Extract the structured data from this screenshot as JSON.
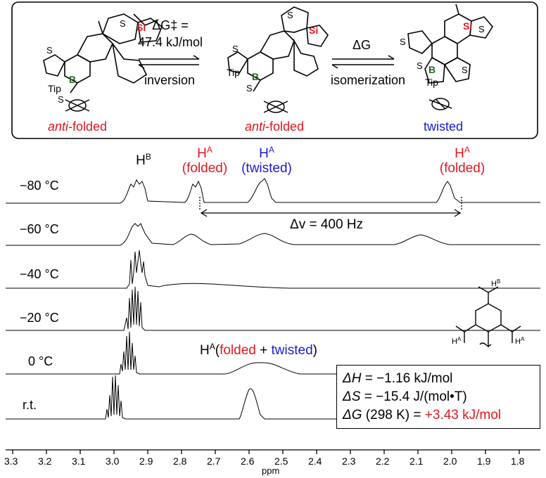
{
  "scheme": {
    "step1_top": "ΔG‡ =",
    "step1_value": "47.4 kJ/mol",
    "step1_bottom": "inversion",
    "step2_top": "ΔG",
    "step2_bottom": "isomerization",
    "captions": [
      {
        "prefix": "anti",
        "rest": "-folded",
        "color": "#e4161e"
      },
      {
        "prefix": "anti",
        "rest": "-folded",
        "color": "#e4161e"
      },
      {
        "prefix": "",
        "rest": "twisted",
        "color": "#1a1ad6"
      }
    ],
    "atom_labels": {
      "si": "Si",
      "b": "B",
      "s": "S",
      "tip": "Tip"
    }
  },
  "spectra": {
    "temperatures": [
      "−80 °C",
      "−60 °C",
      "−40 °C",
      "−20 °C",
      "0 °C",
      "r.t."
    ],
    "peak_labels": {
      "hb": "H",
      "hb_sup": "B",
      "ha1_top": "H",
      "ha1_sup": "A",
      "ha1_bottom": "(folded)",
      "ha2_top": "H",
      "ha2_sup": "A",
      "ha2_bottom": "(twisted)",
      "ha3_top": "H",
      "ha3_sup": "A",
      "ha3_bottom": "(folded)",
      "ha_merged": "H",
      "ha_merged_sup": "A",
      "ha_merged_open": "(",
      "ha_merged_folded": "folded",
      "ha_merged_plus": " + ",
      "ha_merged_twisted": "twisted",
      "ha_merged_close": ")"
    },
    "delta_nu": "Δv = 400 Hz",
    "inset_labels": {
      "hb": "H",
      "hb_sup": "B",
      "ha": "H",
      "ha_sup": "A"
    },
    "axis": {
      "label": "ppm",
      "ticks": [
        "3.3",
        "3.2",
        "3.1",
        "3.0",
        "2.9",
        "2.8",
        "2.7",
        "2.6",
        "2.5",
        "2.4",
        "2.3",
        "2.2",
        "2.1",
        "2.0",
        "1.9",
        "1.8"
      ]
    }
  },
  "thermo": {
    "dh_sym": "ΔH",
    "dh_rest": " = −1.16 kJ/mol",
    "ds_sym": "ΔS",
    "ds_rest": " = −15.4 J/(mol•T)",
    "dg_sym": "ΔG",
    "dg_rest": " (298 K) = ",
    "dg_value": "+3.43 kJ/mol"
  },
  "colors": {
    "red": "#e4161e",
    "blue": "#1a1ad6",
    "si": "#e4161e",
    "b": "#1e6b1e"
  }
}
